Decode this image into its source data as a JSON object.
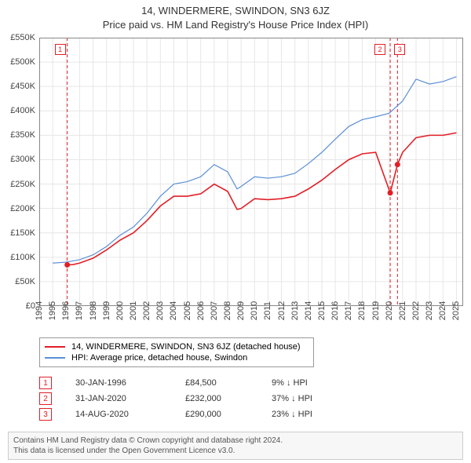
{
  "title1": "14, WINDERMERE, SWINDON, SN3 6JZ",
  "title2": "Price paid vs. HM Land Registry's House Price Index (HPI)",
  "chart": {
    "type": "line",
    "background_color": "#ffffff",
    "grid_color": "#e6e6e6",
    "axis_color": "#888888",
    "ylim": [
      0,
      550000
    ],
    "ytick_step": 50000,
    "yticks": [
      "£0",
      "£50K",
      "£100K",
      "£150K",
      "£200K",
      "£250K",
      "£300K",
      "£350K",
      "£400K",
      "£450K",
      "£500K",
      "£550K"
    ],
    "xlim": [
      1994,
      2025.5
    ],
    "xticks": [
      1994,
      1995,
      1996,
      1997,
      1998,
      1999,
      2000,
      2001,
      2002,
      2003,
      2004,
      2005,
      2006,
      2007,
      2008,
      2009,
      2010,
      2011,
      2012,
      2013,
      2014,
      2015,
      2016,
      2017,
      2018,
      2019,
      2020,
      2021,
      2022,
      2023,
      2024,
      2025
    ],
    "series": [
      {
        "name": "property",
        "label": "14, WINDERMERE, SWINDON, SN3 6JZ (detached house)",
        "color": "#e21f26",
        "width": 1.6,
        "data": [
          [
            1996.08,
            84500
          ],
          [
            1996.5,
            85000
          ],
          [
            1997,
            88000
          ],
          [
            1998,
            98000
          ],
          [
            1999,
            115000
          ],
          [
            2000,
            135000
          ],
          [
            2001,
            150000
          ],
          [
            2002,
            175000
          ],
          [
            2003,
            205000
          ],
          [
            2004,
            225000
          ],
          [
            2005,
            225000
          ],
          [
            2006,
            230000
          ],
          [
            2007,
            250000
          ],
          [
            2008,
            235000
          ],
          [
            2008.7,
            198000
          ],
          [
            2009,
            200000
          ],
          [
            2010,
            220000
          ],
          [
            2011,
            218000
          ],
          [
            2012,
            220000
          ],
          [
            2013,
            225000
          ],
          [
            2014,
            240000
          ],
          [
            2015,
            258000
          ],
          [
            2016,
            280000
          ],
          [
            2017,
            300000
          ],
          [
            2018,
            312000
          ],
          [
            2019,
            315000
          ],
          [
            2020.08,
            232000
          ],
          [
            2020.62,
            290000
          ],
          [
            2021,
            315000
          ],
          [
            2022,
            345000
          ],
          [
            2023,
            350000
          ],
          [
            2024,
            350000
          ],
          [
            2025,
            355000
          ]
        ]
      },
      {
        "name": "hpi",
        "label": "HPI: Average price, detached house, Swindon",
        "color": "#5b8fd6",
        "width": 1.2,
        "data": [
          [
            1995,
            88000
          ],
          [
            1996,
            90000
          ],
          [
            1997,
            95000
          ],
          [
            1998,
            105000
          ],
          [
            1999,
            122000
          ],
          [
            2000,
            145000
          ],
          [
            2001,
            162000
          ],
          [
            2002,
            190000
          ],
          [
            2003,
            225000
          ],
          [
            2004,
            250000
          ],
          [
            2005,
            255000
          ],
          [
            2006,
            265000
          ],
          [
            2007,
            290000
          ],
          [
            2008,
            275000
          ],
          [
            2008.7,
            240000
          ],
          [
            2009,
            245000
          ],
          [
            2010,
            265000
          ],
          [
            2011,
            262000
          ],
          [
            2012,
            265000
          ],
          [
            2013,
            272000
          ],
          [
            2014,
            292000
          ],
          [
            2015,
            315000
          ],
          [
            2016,
            342000
          ],
          [
            2017,
            368000
          ],
          [
            2018,
            382000
          ],
          [
            2019,
            388000
          ],
          [
            2020,
            395000
          ],
          [
            2021,
            420000
          ],
          [
            2022,
            465000
          ],
          [
            2023,
            455000
          ],
          [
            2024,
            460000
          ],
          [
            2025,
            470000
          ]
        ]
      }
    ],
    "sale_markers": [
      {
        "idx": "1",
        "x": 1996.08,
        "y": 84500
      },
      {
        "idx": "2",
        "x": 2020.08,
        "y": 232000
      },
      {
        "idx": "3",
        "x": 2020.62,
        "y": 290000
      }
    ],
    "marker_color": "#e21f26",
    "marker_radius": 3.5,
    "vline_color": "#e21f26",
    "vline_dash": "4,3"
  },
  "legend": {
    "property_label": "14, WINDERMERE, SWINDON, SN3 6JZ (detached house)",
    "hpi_label": "HPI: Average price, detached house, Swindon"
  },
  "events": [
    {
      "idx": "1",
      "date": "30-JAN-1996",
      "price": "£84,500",
      "pct": "9% ↓ HPI"
    },
    {
      "idx": "2",
      "date": "31-JAN-2020",
      "price": "£232,000",
      "pct": "37% ↓ HPI"
    },
    {
      "idx": "3",
      "date": "14-AUG-2020",
      "price": "£290,000",
      "pct": "23% ↓ HPI"
    }
  ],
  "footer_line1": "Contains HM Land Registry data © Crown copyright and database right 2024.",
  "footer_line2": "This data is licensed under the Open Government Licence v3.0."
}
